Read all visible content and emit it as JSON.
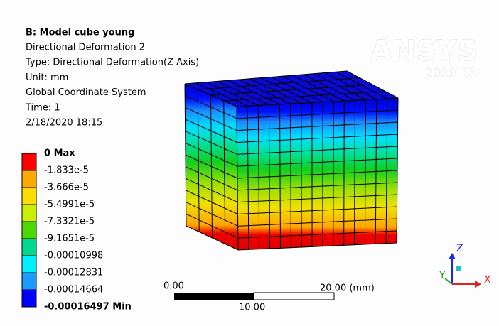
{
  "header": {
    "title": "B: Model cube young",
    "lines": [
      "Directional Deformation 2",
      "Type: Directional Deformation(Z Axis)",
      "Unit: mm",
      "Global Coordinate System",
      "Time: 1",
      "2/18/2020 18:15"
    ]
  },
  "logo": {
    "brand": "ANSYS",
    "version": "2019",
    "release": "R3"
  },
  "legend": {
    "labels": [
      "0 Max",
      "-1.833e-5",
      "-3.666e-5",
      "-5.4991e-5",
      "-7.3321e-5",
      "-9.1651e-5",
      "-0.00010998",
      "-0.00012831",
      "-0.00014664",
      "-0.00016497 Min"
    ]
  },
  "scale_bar": {
    "start": "0.00",
    "middle": "10.00",
    "end": "20.00 (mm)"
  },
  "triad": {
    "z": "Z",
    "y": "Y",
    "x": "X"
  }
}
